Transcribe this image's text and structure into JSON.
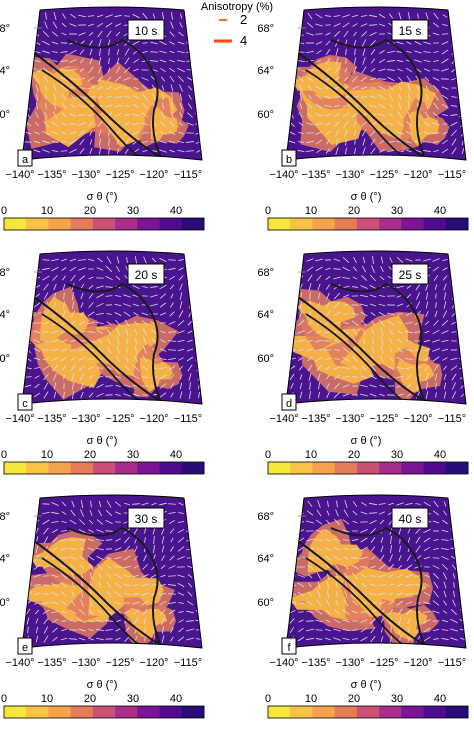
{
  "legend": {
    "title": "Anisotropy (%)",
    "items": [
      {
        "label": "2",
        "color": "#ff6a1a"
      },
      {
        "label": "4",
        "color": "#ff4a10"
      }
    ]
  },
  "colorbar": {
    "title": "σ θ (°)",
    "ticks": [
      "0",
      "10",
      "20",
      "30",
      "40"
    ],
    "colors": [
      "#f7e73a",
      "#f9c445",
      "#f4a24e",
      "#e67b5a",
      "#cc4f74",
      "#a82c8a",
      "#7a1595",
      "#4f0a8f",
      "#280c7a"
    ]
  },
  "map": {
    "lat_labels": [
      "68°",
      "64°",
      "60°"
    ],
    "lon_labels": [
      "−140°",
      "−135°",
      "−130°",
      "−125°",
      "−120°",
      "−115°"
    ],
    "background": "#4a148f",
    "hot_color": "#f7b545",
    "mid_color": "#e07a5f",
    "fault_color": "#1a1a1a",
    "arrow_color": "#dcdcf0"
  },
  "panels": [
    {
      "letter": "a",
      "period": "10 s"
    },
    {
      "letter": "b",
      "period": "15 s"
    },
    {
      "letter": "c",
      "period": "20 s"
    },
    {
      "letter": "d",
      "period": "25 s"
    },
    {
      "letter": "e",
      "period": "30 s"
    },
    {
      "letter": "f",
      "period": "40 s"
    }
  ]
}
